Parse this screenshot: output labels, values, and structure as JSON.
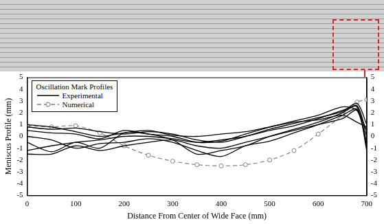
{
  "chart_data": {
    "type": "line",
    "legend_title": "Oscillation Mark Profiles",
    "x_label": "Distance From Center of Wide Face (mm)",
    "y_label": "Meniscus Profile (mm)",
    "x": [
      0,
      50,
      100,
      150,
      200,
      250,
      300,
      350,
      400,
      450,
      500,
      550,
      600,
      650,
      680,
      700
    ],
    "series": [
      {
        "name": "Experimental",
        "color": "#000000",
        "marker": "none",
        "line_style": "solid",
        "values": [
          -1.2,
          -0.8,
          -0.5,
          -0.3,
          0,
          0,
          -0.2,
          -0.5,
          -0.3,
          0,
          0.5,
          0.9,
          1.5,
          2.2,
          2.5,
          -1.2
        ]
      },
      {
        "name": "Experimental",
        "color": "#000000",
        "marker": "none",
        "line_style": "solid",
        "values": [
          -0.5,
          -1.3,
          -0.5,
          -1,
          0.3,
          0.2,
          -0.3,
          -1.5,
          -1.2,
          -0.8,
          0,
          0.6,
          1.2,
          2,
          2.6,
          0
        ]
      },
      {
        "name": "Experimental",
        "color": "#000000",
        "marker": "none",
        "line_style": "solid",
        "values": [
          0.5,
          0.3,
          0.2,
          -0.2,
          0.5,
          0.2,
          0,
          -0.5,
          -0.4,
          0.2,
          0.8,
          1.3,
          1.8,
          2.5,
          2.2,
          0.5
        ]
      },
      {
        "name": "Experimental",
        "color": "#000000",
        "marker": "none",
        "line_style": "solid",
        "values": [
          0.8,
          0.6,
          0.7,
          0.4,
          0.2,
          0.4,
          0.2,
          -0.3,
          -0.5,
          0,
          0.6,
          1.1,
          1.6,
          2.1,
          2.8,
          1
        ]
      },
      {
        "name": "Experimental",
        "color": "#000000",
        "marker": "none",
        "line_style": "solid",
        "values": [
          0,
          -0.3,
          -1,
          -0.6,
          -0.5,
          -0.2,
          -0.5,
          -1.2,
          -1.7,
          -0.8,
          -0.4,
          0.3,
          1,
          1.8,
          2.3,
          -0.5
        ]
      },
      {
        "name": "Experimental",
        "color": "#000000",
        "marker": "none",
        "line_style": "solid",
        "values": [
          1,
          0.8,
          0.4,
          0,
          0.3,
          0.5,
          0.1,
          0,
          0.2,
          0.4,
          0.8,
          1.2,
          1.4,
          1.8,
          1.2,
          0.8
        ]
      },
      {
        "name": "Experimental",
        "color": "#000000",
        "marker": "none",
        "line_style": "solid",
        "values": [
          -1.5,
          -1.5,
          -0.8,
          -1.2,
          -0.8,
          -0.5,
          -0.3,
          -0.8,
          -1,
          -0.5,
          0,
          0.5,
          1,
          1.5,
          2.2,
          -0.8
        ]
      },
      {
        "name": "Numerical",
        "color": "#808080",
        "marker": "circle",
        "line_style": "dashed",
        "values": [
          0.9,
          0.8,
          0.9,
          0.3,
          -0.8,
          -1.6,
          -2.1,
          -2.4,
          -2.5,
          -2.4,
          -2,
          -1.2,
          0.2,
          1.8,
          2.9,
          3.1
        ]
      }
    ],
    "xlim": [
      0,
      700
    ],
    "xticks": [
      0,
      100,
      200,
      300,
      400,
      500,
      600,
      700
    ],
    "ylim": [
      -5,
      5
    ],
    "yticks": [
      -5,
      -4,
      -3,
      -2,
      -1,
      0,
      1,
      2,
      3,
      4,
      5
    ],
    "y2lim": [
      -5,
      5
    ],
    "y2ticks": [
      -5,
      -4,
      -3,
      -2,
      -1,
      0,
      1,
      2,
      3,
      4,
      5
    ],
    "grid": false,
    "legend": "upper left"
  }
}
